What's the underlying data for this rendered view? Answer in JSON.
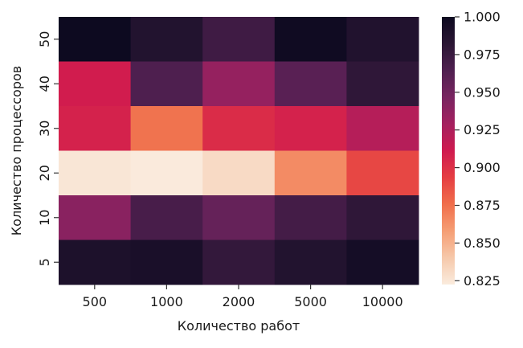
{
  "chart_data": {
    "type": "heatmap",
    "title": "",
    "xlabel": "Количество работ",
    "ylabel": "Количество процессоров",
    "x_categories": [
      "500",
      "1000",
      "2000",
      "5000",
      "10000"
    ],
    "y_categories": [
      "50",
      "40",
      "30",
      "20",
      "10",
      "5"
    ],
    "values": [
      [
        1.0,
        0.987,
        0.972,
        0.998,
        0.988
      ],
      [
        0.91,
        0.965,
        0.935,
        0.96,
        0.98
      ],
      [
        0.907,
        0.874,
        0.902,
        0.907,
        0.922
      ],
      [
        0.825,
        0.823,
        0.831,
        0.865,
        0.89
      ],
      [
        0.94,
        0.968,
        0.955,
        0.97,
        0.98
      ],
      [
        0.99,
        0.992,
        0.978,
        0.987,
        0.995
      ]
    ],
    "colorbar": {
      "min": 0.8225,
      "max": 1.0,
      "ticks": [
        "0.825",
        "0.850",
        "0.875",
        "0.900",
        "0.925",
        "0.950",
        "0.975",
        "1.000"
      ],
      "colormap": "rocket_r"
    }
  }
}
